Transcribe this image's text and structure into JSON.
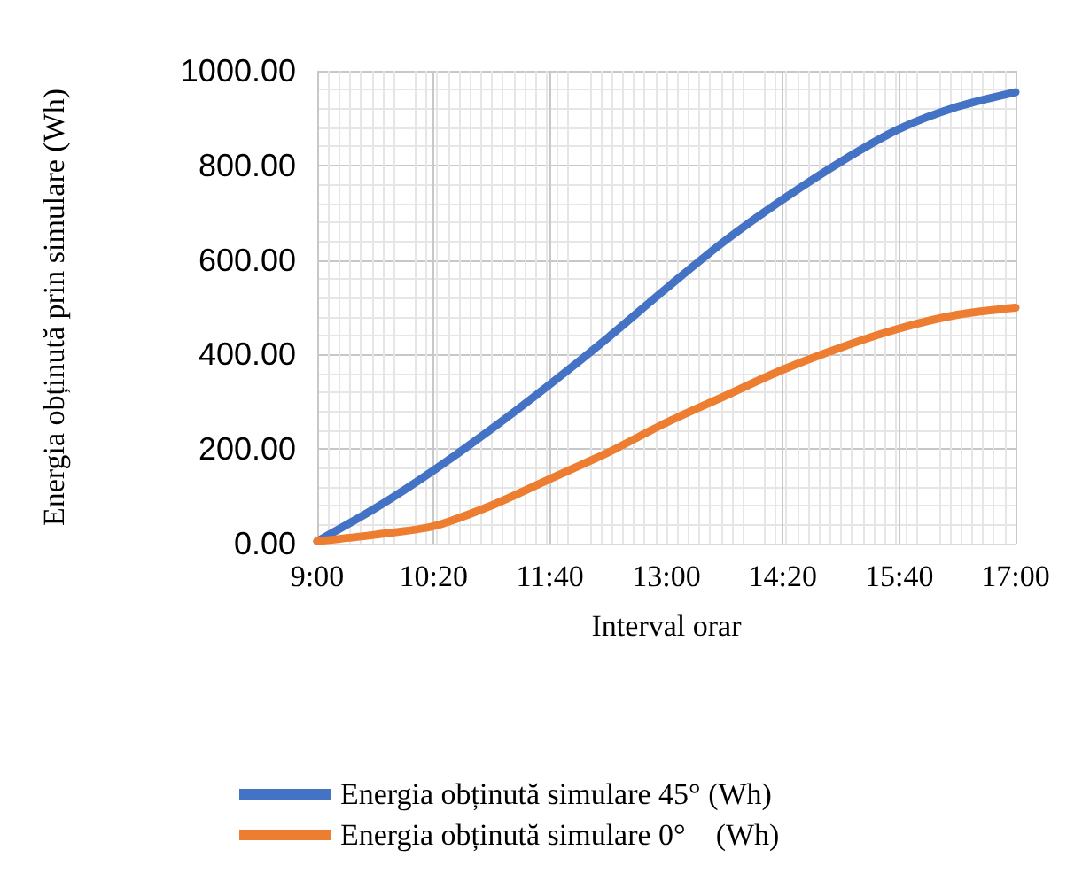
{
  "chart_data": {
    "type": "line",
    "xlabel": "Interval orar",
    "ylabel": "Energia obținută prin simulare (Wh)",
    "x": [
      9,
      9.6667,
      10.3333,
      11,
      11.6667,
      12.3333,
      13,
      13.6667,
      14.3333,
      15,
      15.6667,
      16.3333,
      17
    ],
    "series": [
      {
        "name": "Energia obținută simulare 45° (Wh)",
        "color": "#4472c4",
        "values": [
          5,
          75,
          155,
          243,
          337,
          436,
          540,
          640,
          728,
          808,
          877,
          924,
          955
        ]
      },
      {
        "name": "Energia obținută simulare 0°    (Wh)",
        "color": "#ed7d31",
        "values": [
          5,
          19,
          37,
          81,
          137,
          193,
          256,
          312,
          368,
          415,
          455,
          484,
          499
        ]
      }
    ],
    "xlim": [
      9,
      17
    ],
    "xticks": [
      {
        "value": 9,
        "label": "9:00"
      },
      {
        "value": 10.3333,
        "label": "10:20"
      },
      {
        "value": 11.6667,
        "label": "11:40"
      },
      {
        "value": 13,
        "label": "13:00"
      },
      {
        "value": 14.3333,
        "label": "14:20"
      },
      {
        "value": 15.6667,
        "label": "15:40"
      },
      {
        "value": 17,
        "label": "17:00"
      }
    ],
    "ylim": [
      0,
      1000
    ],
    "yticks": [
      {
        "value": 0,
        "label": "0.00"
      },
      {
        "value": 200,
        "label": "200.00"
      },
      {
        "value": 400,
        "label": "400.00"
      },
      {
        "value": 600,
        "label": "600.00"
      },
      {
        "value": 800,
        "label": "800.00"
      },
      {
        "value": 1000,
        "label": "1000.00"
      }
    ],
    "grid": true,
    "legend": "bottom",
    "marker": "none",
    "line_style": "solid"
  }
}
